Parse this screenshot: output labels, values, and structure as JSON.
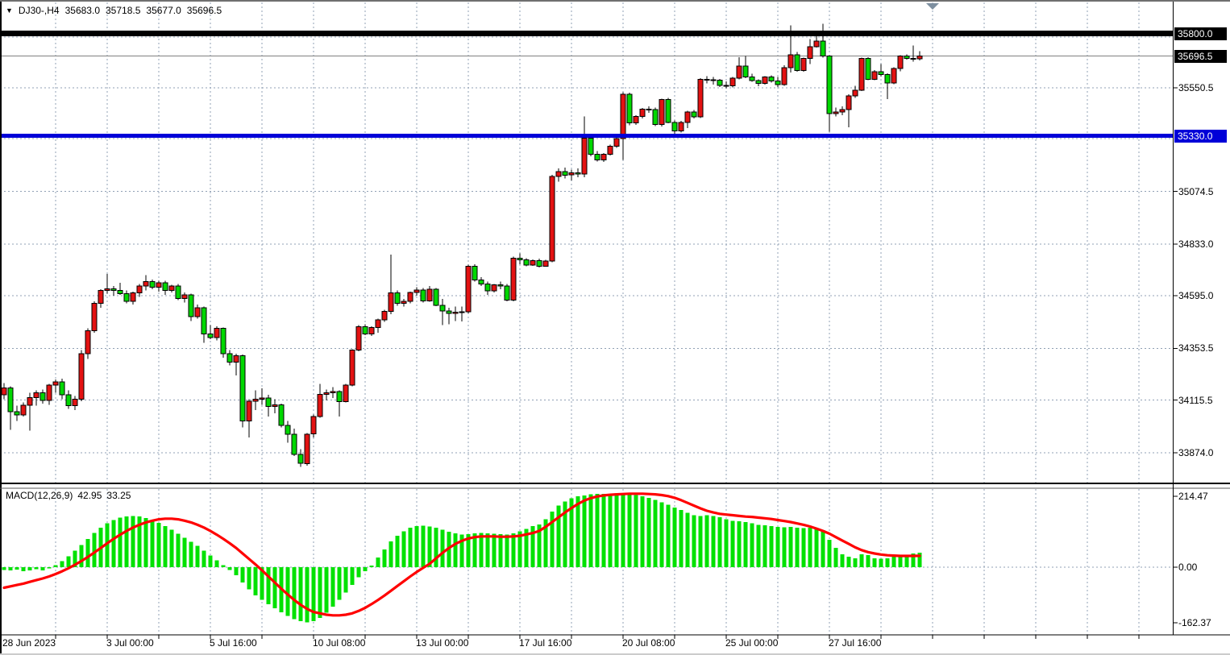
{
  "header": {
    "dropdown_icon": "▼",
    "symbol": "DJ30-,H4",
    "open": "35683.0",
    "high": "35718.5",
    "low": "35677.0",
    "close": "35696.5"
  },
  "indicator_label": {
    "name": "MACD(12,26,9)",
    "macd_value": "42.95",
    "signal_value": "33.25"
  },
  "price_axis": {
    "tick_labels": [
      "35550.5",
      "35074.5",
      "34833.0",
      "34595.0",
      "34353.5",
      "34115.5",
      "33874.0"
    ],
    "level_badges": [
      {
        "text": "35800.0",
        "style": "black",
        "price": 35800.0
      },
      {
        "text": "35696.5",
        "style": "black",
        "price": 35696.5
      },
      {
        "text": "35330.0",
        "style": "blue",
        "price": 35330.0
      }
    ]
  },
  "macd_axis": {
    "tick_labels": [
      {
        "text": "214.47",
        "value": 214.47
      },
      {
        "text": "0.00",
        "value": 0
      },
      {
        "text": "-162.37",
        "value": -162.37
      }
    ]
  },
  "time_axis": {
    "labels": [
      {
        "text": "28 Jun 2023",
        "index": 0
      },
      {
        "text": "3 Jul 00:00",
        "index": 16
      },
      {
        "text": "5 Jul 16:00",
        "index": 32
      },
      {
        "text": "10 Jul 08:00",
        "index": 48
      },
      {
        "text": "13 Jul 00:00",
        "index": 64
      },
      {
        "text": "17 Jul 16:00",
        "index": 80
      },
      {
        "text": "20 Jul 08:00",
        "index": 96
      },
      {
        "text": "25 Jul 00:00",
        "index": 112
      },
      {
        "text": "27 Jul 16:00",
        "index": 128
      }
    ]
  },
  "chart_data": {
    "type": "candlestick",
    "symbol": "DJ30-",
    "timeframe": "H4",
    "title": "DJ30-,H4 35683.0 35718.5 35677.0 35696.5",
    "current_price": 35696.5,
    "price_axis_range": [
      33733,
      35940
    ],
    "grid": true,
    "colors": {
      "bull_body": "#e31212",
      "bear_body": "#00d800",
      "outline": "#000000",
      "wick": "#000000",
      "grid": "#90A0B4",
      "histogram": "#00e100",
      "signal_line": "#ff0000",
      "current_price_line": "#808080",
      "shift_marker": "#7e8fa0",
      "badge_text": "#ffffff"
    },
    "horizontal_levels": [
      {
        "price": 35800.0,
        "color": "#000000",
        "thickness": 7
      },
      {
        "price": 35330.0,
        "color": "#0000d8",
        "thickness": 5
      }
    ],
    "current_price_line": {
      "price": 35696.5,
      "color": "#808080",
      "thickness": 1
    },
    "candles": [
      [
        34140,
        34195,
        34120,
        34172
      ],
      [
        34172,
        34180,
        33980,
        34062
      ],
      [
        34062,
        34090,
        34020,
        34048
      ],
      [
        34048,
        34105,
        34040,
        34092
      ],
      [
        34092,
        34150,
        33975,
        34128
      ],
      [
        34128,
        34160,
        34090,
        34150
      ],
      [
        34150,
        34165,
        34100,
        34115
      ],
      [
        34115,
        34190,
        34095,
        34185
      ],
      [
        34185,
        34210,
        34150,
        34200
      ],
      [
        34200,
        34215,
        34120,
        34140
      ],
      [
        34140,
        34160,
        34075,
        34090
      ],
      [
        34090,
        34135,
        34070,
        34120
      ],
      [
        34120,
        34345,
        34110,
        34330
      ],
      [
        34330,
        34445,
        34305,
        34434
      ],
      [
        34434,
        34570,
        34425,
        34560
      ],
      [
        34560,
        34625,
        34540,
        34620
      ],
      [
        34620,
        34695,
        34605,
        34627
      ],
      [
        34627,
        34640,
        34595,
        34620
      ],
      [
        34620,
        34655,
        34600,
        34605
      ],
      [
        34605,
        34620,
        34560,
        34570
      ],
      [
        34570,
        34615,
        34555,
        34608
      ],
      [
        34608,
        34650,
        34590,
        34640
      ],
      [
        34640,
        34690,
        34620,
        34660
      ],
      [
        34660,
        34670,
        34625,
        34635
      ],
      [
        34635,
        34665,
        34615,
        34655
      ],
      [
        34655,
        34665,
        34600,
        34620
      ],
      [
        34620,
        34645,
        34610,
        34640
      ],
      [
        34640,
        34650,
        34575,
        34582
      ],
      [
        34582,
        34610,
        34565,
        34600
      ],
      [
        34600,
        34605,
        34480,
        34500
      ],
      [
        34500,
        34555,
        34490,
        34540
      ],
      [
        34540,
        34545,
        34380,
        34420
      ],
      [
        34420,
        34460,
        34395,
        34404
      ],
      [
        34404,
        34455,
        34390,
        34445
      ],
      [
        34445,
        34450,
        34310,
        34330
      ],
      [
        34330,
        34345,
        34275,
        34290
      ],
      [
        34290,
        34330,
        34230,
        34320
      ],
      [
        34320,
        34325,
        33990,
        34020
      ],
      [
        34020,
        34120,
        33945,
        34110
      ],
      [
        34110,
        34160,
        34070,
        34120
      ],
      [
        34120,
        34170,
        34095,
        34125
      ],
      [
        34125,
        34140,
        34040,
        34087
      ],
      [
        34087,
        34120,
        34055,
        34095
      ],
      [
        34095,
        34100,
        33990,
        34000
      ],
      [
        34000,
        34020,
        33920,
        33960
      ],
      [
        33960,
        33985,
        33860,
        33867
      ],
      [
        33867,
        33890,
        33810,
        33825
      ],
      [
        33825,
        33965,
        33815,
        33960
      ],
      [
        33960,
        34050,
        33945,
        34040
      ],
      [
        34040,
        34190,
        34035,
        34143
      ],
      [
        34143,
        34165,
        34115,
        34150
      ],
      [
        34150,
        34175,
        34125,
        34155
      ],
      [
        34155,
        34160,
        34040,
        34110
      ],
      [
        34110,
        34190,
        34105,
        34185
      ],
      [
        34185,
        34350,
        34180,
        34345
      ],
      [
        34345,
        34460,
        34340,
        34453
      ],
      [
        34453,
        34465,
        34415,
        34420
      ],
      [
        34420,
        34455,
        34410,
        34450
      ],
      [
        34450,
        34490,
        34425,
        34485
      ],
      [
        34485,
        34530,
        34475,
        34523
      ],
      [
        34523,
        34785,
        34510,
        34608
      ],
      [
        34608,
        34620,
        34550,
        34560
      ],
      [
        34560,
        34580,
        34545,
        34570
      ],
      [
        34570,
        34615,
        34560,
        34610
      ],
      [
        34610,
        34635,
        34595,
        34622
      ],
      [
        34622,
        34630,
        34565,
        34572
      ],
      [
        34572,
        34640,
        34568,
        34625
      ],
      [
        34625,
        34630,
        34548,
        34552
      ],
      [
        34552,
        34580,
        34460,
        34525
      ],
      [
        34525,
        34540,
        34465,
        34515
      ],
      [
        34515,
        34545,
        34480,
        34520
      ],
      [
        34520,
        34545,
        34478,
        34522
      ],
      [
        34522,
        34738,
        34515,
        34730
      ],
      [
        34730,
        34740,
        34660,
        34668
      ],
      [
        34668,
        34680,
        34640,
        34650
      ],
      [
        34650,
        34660,
        34600,
        34618
      ],
      [
        34618,
        34650,
        34610,
        34645
      ],
      [
        34645,
        34660,
        34625,
        34640
      ],
      [
        34640,
        34650,
        34570,
        34575
      ],
      [
        34575,
        34775,
        34570,
        34767
      ],
      [
        34767,
        34790,
        34740,
        34760
      ],
      [
        34760,
        34768,
        34730,
        34737
      ],
      [
        34737,
        34762,
        34732,
        34757
      ],
      [
        34757,
        34765,
        34725,
        34731
      ],
      [
        34731,
        34760,
        34728,
        34755
      ],
      [
        34755,
        35150,
        34750,
        35143
      ],
      [
        35143,
        35180,
        35120,
        35165
      ],
      [
        35165,
        35185,
        35135,
        35150
      ],
      [
        35150,
        35175,
        35125,
        35160
      ],
      [
        35160,
        35180,
        35140,
        35155
      ],
      [
        35155,
        35420,
        35140,
        35320
      ],
      [
        35320,
        35340,
        35235,
        35245
      ],
      [
        35245,
        35260,
        35212,
        35220
      ],
      [
        35220,
        35250,
        35210,
        35245
      ],
      [
        35245,
        35290,
        35240,
        35283
      ],
      [
        35283,
        35325,
        35275,
        35318
      ],
      [
        35318,
        35530,
        35220,
        35520
      ],
      [
        35520,
        35528,
        35378,
        35390
      ],
      [
        35390,
        35425,
        35380,
        35419
      ],
      [
        35419,
        35458,
        35410,
        35453
      ],
      [
        35453,
        35465,
        35435,
        35450
      ],
      [
        35450,
        35460,
        35375,
        35382
      ],
      [
        35382,
        35500,
        35372,
        35497
      ],
      [
        35497,
        35505,
        35388,
        35392
      ],
      [
        35392,
        35400,
        35340,
        35352
      ],
      [
        35352,
        35398,
        35345,
        35392
      ],
      [
        35392,
        35445,
        35365,
        35440
      ],
      [
        35440,
        35448,
        35410,
        35418
      ],
      [
        35418,
        35595,
        35412,
        35590
      ],
      [
        35590,
        35605,
        35570,
        35588
      ],
      [
        35588,
        35600,
        35565,
        35585
      ],
      [
        35585,
        35592,
        35555,
        35562
      ],
      [
        35562,
        35580,
        35548,
        35560
      ],
      [
        35560,
        35600,
        35552,
        35595
      ],
      [
        35595,
        35692,
        35590,
        35650
      ],
      [
        35650,
        35697,
        35595,
        35600
      ],
      [
        35600,
        35615,
        35578,
        35583
      ],
      [
        35583,
        35590,
        35558,
        35570
      ],
      [
        35570,
        35605,
        35565,
        35600
      ],
      [
        35600,
        35608,
        35575,
        35582
      ],
      [
        35582,
        35600,
        35555,
        35565
      ],
      [
        35565,
        35655,
        35560,
        35643
      ],
      [
        35643,
        35838,
        35620,
        35703
      ],
      [
        35703,
        35715,
        35625,
        35630
      ],
      [
        35630,
        35690,
        35625,
        35685
      ],
      [
        35685,
        35775,
        35660,
        35740
      ],
      [
        35740,
        35790,
        35735,
        35765
      ],
      [
        35765,
        35845,
        35690,
        35697
      ],
      [
        35697,
        35700,
        35348,
        35432
      ],
      [
        35432,
        35460,
        35420,
        35440
      ],
      [
        35440,
        35465,
        35425,
        35450
      ],
      [
        35450,
        35520,
        35370,
        35513
      ],
      [
        35513,
        35560,
        35505,
        35540
      ],
      [
        35540,
        35690,
        35535,
        35685
      ],
      [
        35685,
        35692,
        35585,
        35590
      ],
      [
        35590,
        35632,
        35585,
        35625
      ],
      [
        35625,
        35660,
        35603,
        35612
      ],
      [
        35612,
        35618,
        35498,
        35572
      ],
      [
        35572,
        35645,
        35568,
        35640
      ],
      [
        35640,
        35700,
        35626,
        35697
      ],
      [
        35697,
        35705,
        35680,
        35686
      ],
      [
        35686,
        35745,
        35670,
        35683
      ],
      [
        35683,
        35718.5,
        35677,
        35696.5
      ]
    ],
    "indicator": {
      "name": "MACD(12,26,9)",
      "fast": 12,
      "slow": 26,
      "signal_period": 9,
      "max": 214.47,
      "min": -162.37,
      "current_macd": 42.95,
      "current_signal": 33.25,
      "histogram": [
        -8,
        -10,
        -7,
        -12,
        -9,
        -6,
        -10,
        -4,
        6,
        18,
        32,
        48,
        65,
        82,
        100,
        115,
        128,
        138,
        145,
        149,
        150,
        148,
        144,
        138,
        130,
        120,
        110,
        98,
        86,
        74,
        62,
        48,
        34,
        20,
        6,
        -8,
        -24,
        -45,
        -65,
        -82,
        -96,
        -108,
        -120,
        -132,
        -143,
        -152,
        -158,
        -162,
        -158,
        -148,
        -133,
        -115,
        -95,
        -74,
        -52,
        -30,
        -12,
        5,
        28,
        52,
        75,
        92,
        105,
        115,
        120,
        121,
        119,
        115,
        110,
        104,
        99,
        96,
        97,
        99,
        100,
        99,
        98,
        97,
        96,
        99,
        105,
        112,
        120,
        125,
        140,
        163,
        180,
        192,
        201,
        207,
        210,
        213,
        214.47,
        214,
        212,
        211,
        213,
        214,
        211,
        207,
        203,
        197,
        190,
        183,
        175,
        167,
        159,
        152,
        150,
        152,
        150,
        146,
        140,
        136,
        134,
        132,
        128,
        124,
        122,
        120,
        118,
        117,
        118,
        115,
        114,
        115,
        113,
        108,
        80,
        57,
        38,
        31,
        26,
        38,
        35,
        26,
        25,
        26,
        31,
        33,
        36,
        40,
        42.95
      ],
      "signal": [
        -60,
        -56,
        -52,
        -48,
        -43,
        -38,
        -33,
        -27,
        -20,
        -12,
        -3,
        7,
        18,
        30,
        43,
        56,
        70,
        83,
        95,
        106,
        116,
        124,
        131,
        136,
        140,
        142,
        142,
        140,
        136,
        131,
        124,
        116,
        106,
        95,
        83,
        70,
        56,
        40,
        24,
        8,
        -9,
        -27,
        -45,
        -63,
        -80,
        -96,
        -110,
        -122,
        -131,
        -135,
        -139,
        -141,
        -141,
        -139,
        -135,
        -128,
        -119,
        -108,
        -96,
        -83,
        -69,
        -55,
        -41,
        -27,
        -14,
        -2,
        10,
        26,
        42,
        56,
        68,
        77,
        84,
        88,
        90,
        90,
        90,
        89,
        89,
        90,
        92,
        96,
        100,
        106,
        118,
        132,
        146,
        160,
        173,
        185,
        195,
        202,
        207,
        210,
        212,
        213,
        214,
        215,
        215,
        215,
        214,
        213,
        211,
        208,
        203,
        196,
        188,
        180,
        172,
        165,
        160,
        156,
        154,
        152,
        150,
        148,
        147,
        145,
        143,
        141,
        138,
        135,
        132,
        128,
        124,
        119,
        113,
        106,
        98,
        88,
        78,
        68,
        58,
        50,
        44,
        40,
        37,
        35,
        34,
        33,
        33,
        33,
        33.25
      ]
    }
  }
}
